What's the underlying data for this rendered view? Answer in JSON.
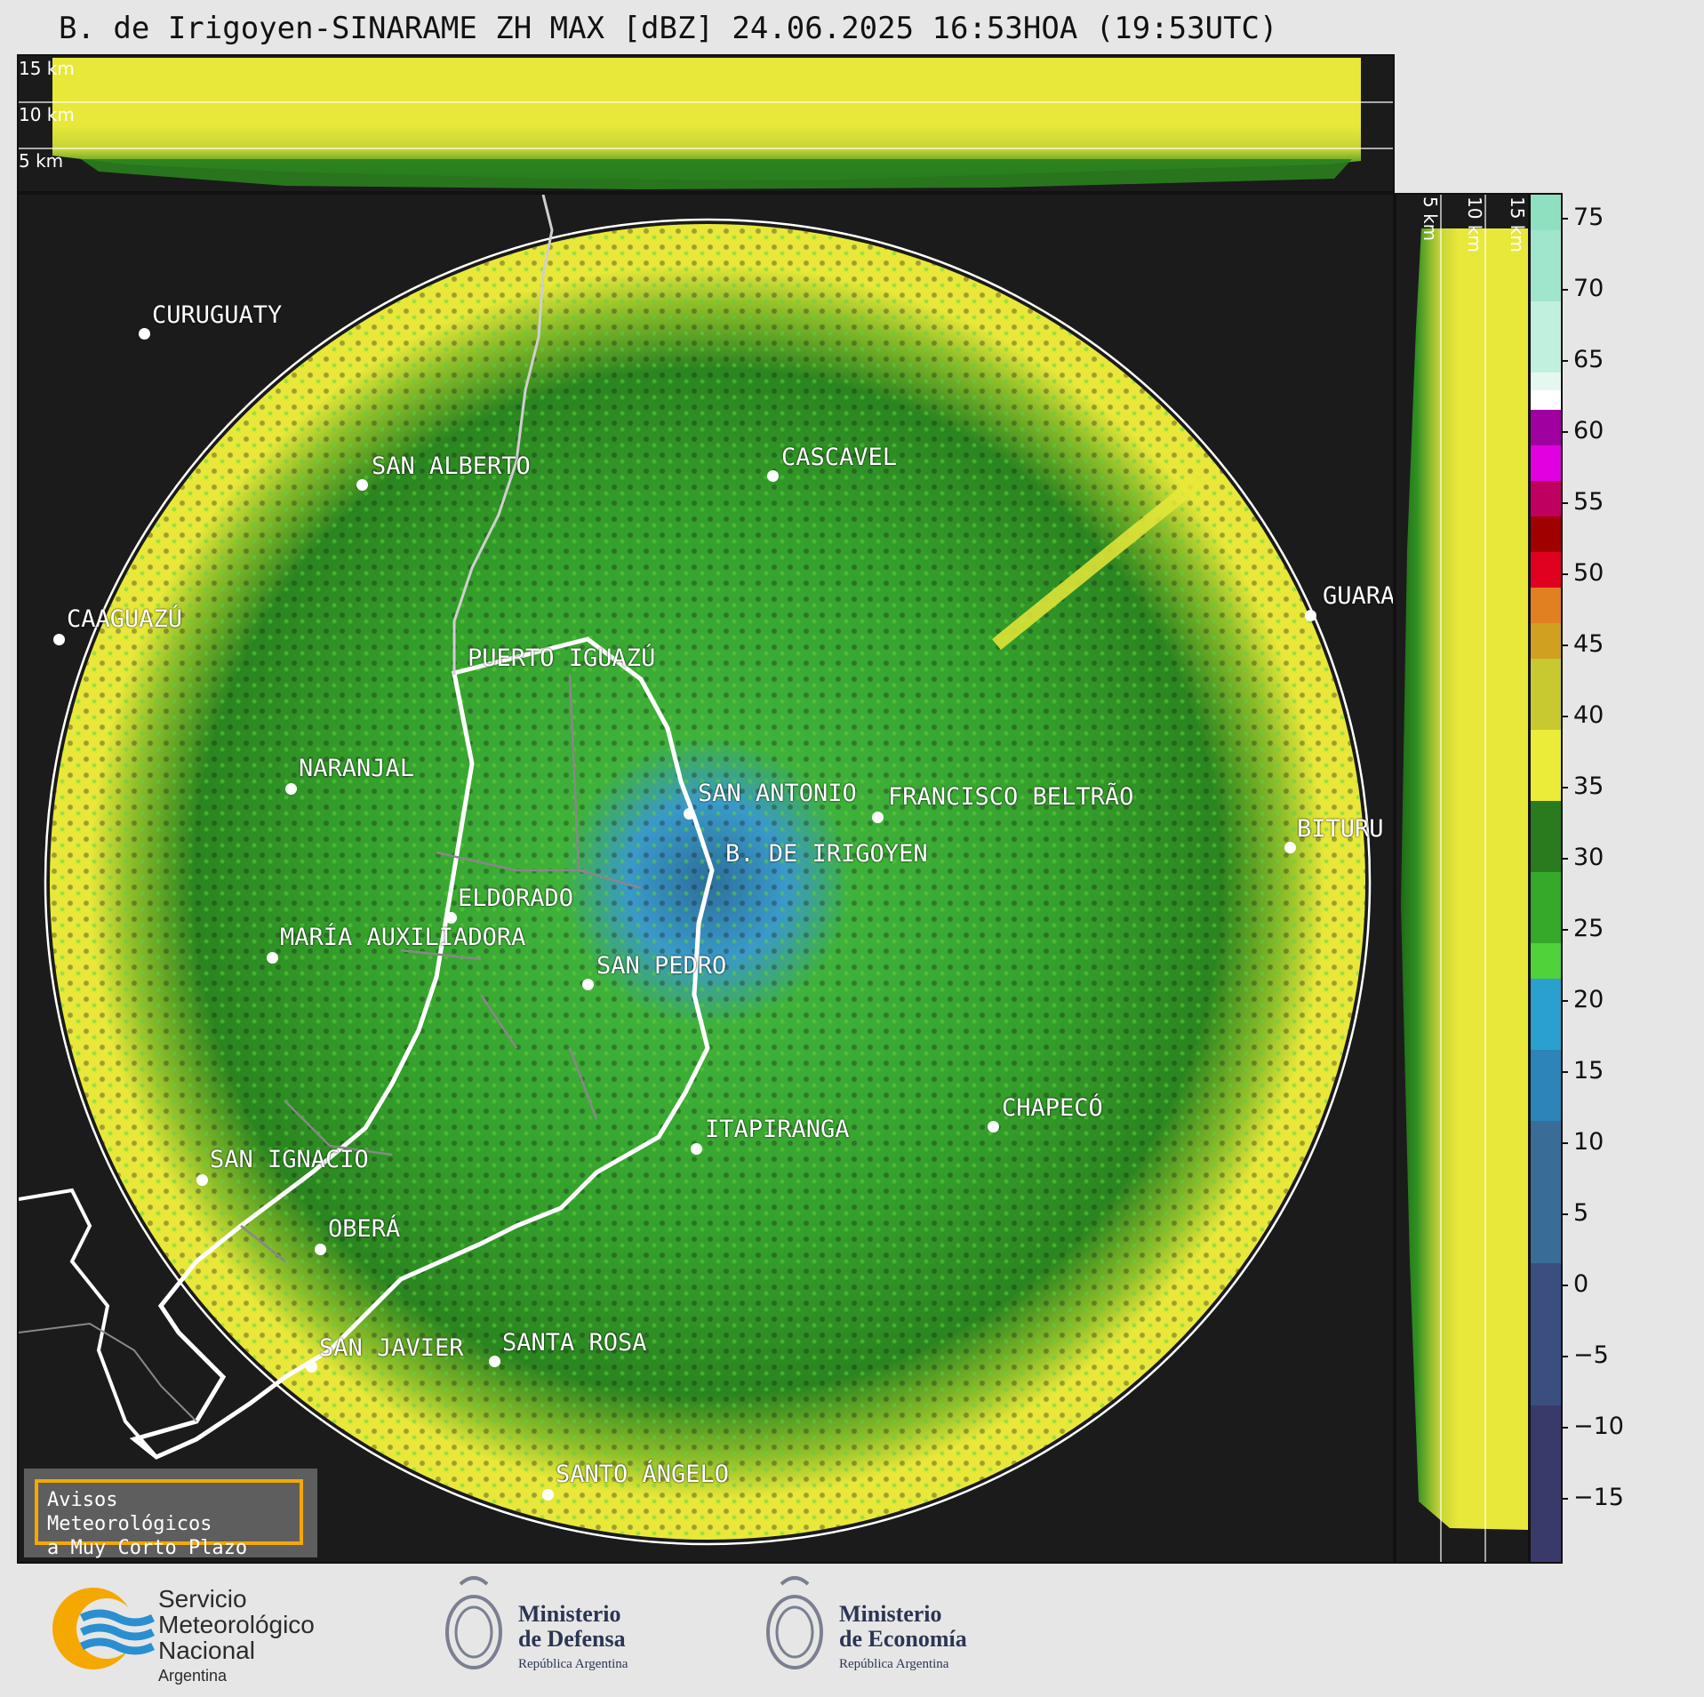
{
  "title": "B. de Irigoyen-SINARAME ZH MAX [dBZ] 24.06.2025 16:53HOA (19:53UTC)",
  "height_labels_top": [
    "15 km",
    "10 km",
    "5 km"
  ],
  "height_labels_right": [
    "5 km",
    "10 km",
    "15 km"
  ],
  "colorbar": {
    "ticks": [
      "75",
      "70",
      "65",
      "60",
      "55",
      "50",
      "45",
      "40",
      "35",
      "30",
      "25",
      "20",
      "15",
      "10",
      "5",
      "0",
      "−5",
      "−10",
      "−15"
    ]
  },
  "cities": [
    {
      "name": "CURUGUATY"
    },
    {
      "name": "SAN ALBERTO"
    },
    {
      "name": "CASCAVEL"
    },
    {
      "name": "CAAGUAZÚ"
    },
    {
      "name": "GUARA"
    },
    {
      "name": "PUERTO IGUAZÚ"
    },
    {
      "name": "NARANJAL"
    },
    {
      "name": "SAN ANTONIO"
    },
    {
      "name": "FRANCISCO BELTRÃO"
    },
    {
      "name": "B. DE IRIGOYEN"
    },
    {
      "name": "BITURU"
    },
    {
      "name": "ELDORADO"
    },
    {
      "name": "MARÍA AUXILIADORA"
    },
    {
      "name": "SAN PEDRO"
    },
    {
      "name": "CHAPECÓ"
    },
    {
      "name": "ITAPIRANGA"
    },
    {
      "name": "SAN IGNACIO"
    },
    {
      "name": "OBERÁ"
    },
    {
      "name": "SAN JAVIER"
    },
    {
      "name": "SANTA ROSA"
    },
    {
      "name": "SANTO ÁNGELO"
    }
  ],
  "avisos": {
    "line1": "Avisos Meteorológicos",
    "line2": "a Muy Corto Plazo"
  },
  "logos": {
    "smn": {
      "line1": "Servicio",
      "line2": "Meteorológico",
      "line3": "Nacional",
      "line4": "Argentina"
    },
    "defensa": {
      "line1": "Ministerio",
      "line2": "de Defensa",
      "line3": "República Argentina"
    },
    "economia": {
      "line1": "Ministerio",
      "line2": "de Economía",
      "line3": "República Argentina"
    }
  },
  "colors": {
    "echo_strong": "#e8e83a",
    "echo_mid": "#2f8f22",
    "echo_weak": "#3a8fc0",
    "background": "#1b1b1b"
  }
}
